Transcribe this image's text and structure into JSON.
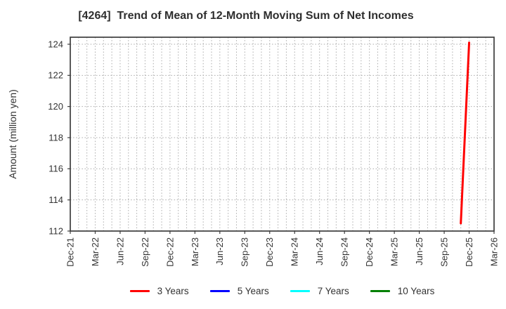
{
  "chart_data": {
    "type": "line",
    "title": "[4264]  Trend of Mean of 12-Month Moving Sum of Net Incomes",
    "ylabel": "Amount (million yen)",
    "x_tick_labels": [
      "Dec-21",
      "Mar-22",
      "Jun-22",
      "Sep-22",
      "Dec-22",
      "Mar-23",
      "Jun-23",
      "Sep-23",
      "Dec-23",
      "Mar-24",
      "Jun-24",
      "Sep-24",
      "Dec-24",
      "Mar-25",
      "Jun-25",
      "Sep-25",
      "Dec-25",
      "Mar-26"
    ],
    "y_ticks": [
      112,
      114,
      116,
      118,
      120,
      122,
      124
    ],
    "ylim": [
      112,
      124.45
    ],
    "grid": {
      "style": "dotted",
      "color": "#ababab",
      "vertical_interval_months": 1
    },
    "axis_color": "#3d3d3d",
    "tick_label_color": "#333333",
    "series": [
      {
        "name": "3 Years",
        "color": "#ff0000",
        "points": [
          {
            "month": "Nov-25",
            "value": 112.5
          },
          {
            "month": "Dec-25",
            "value": 124.1
          }
        ]
      },
      {
        "name": "5 Years",
        "color": "#0000ff",
        "points": []
      },
      {
        "name": "7 Years",
        "color": "#00ffff",
        "points": []
      },
      {
        "name": "10 Years",
        "color": "#008000",
        "points": []
      }
    ],
    "legend": {
      "position": "bottom"
    }
  }
}
